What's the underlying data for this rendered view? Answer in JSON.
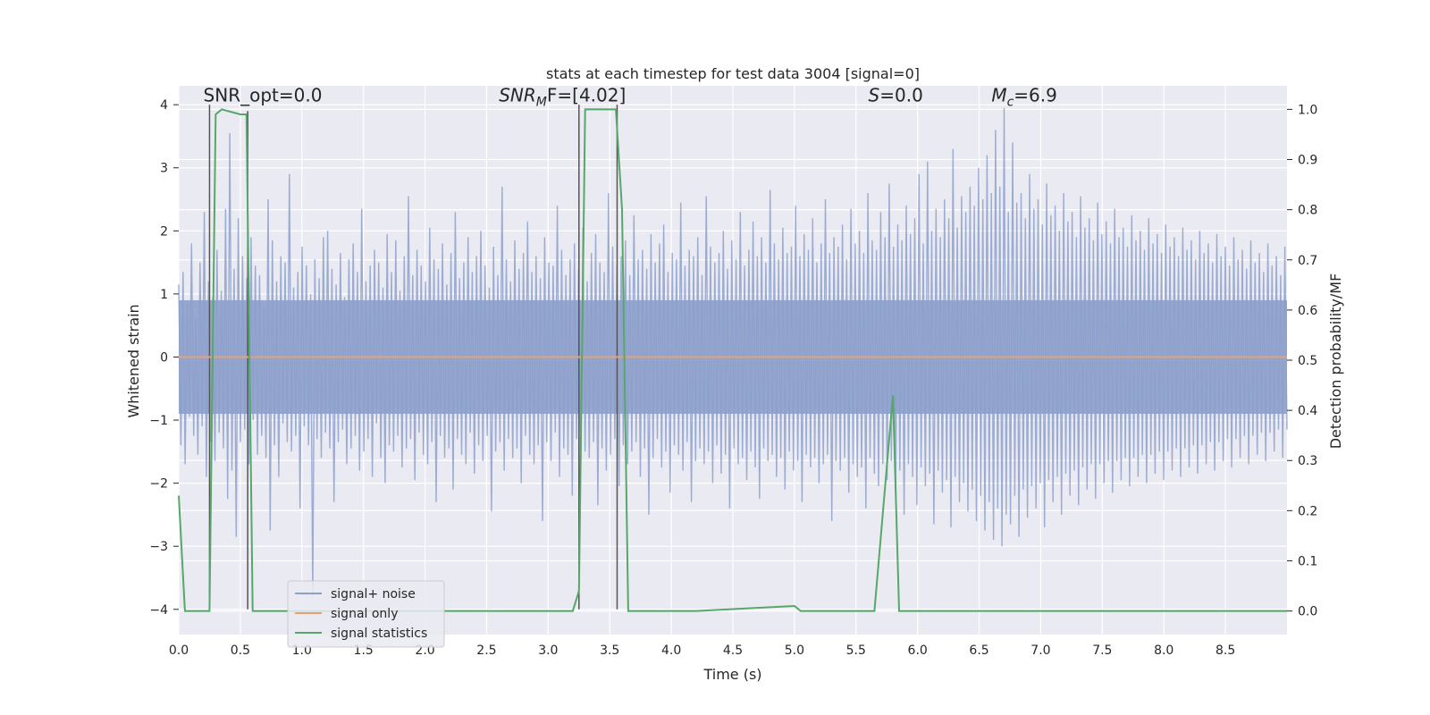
{
  "chart_data": {
    "type": "line",
    "title": "stats at each timestep for test data 3004 [signal=0]",
    "xlabel": "Time (s)",
    "ylabel": "Whitened strain",
    "y2label": "Detection probability/MF",
    "xlim": [
      0.0,
      9.0
    ],
    "ylim": [
      -4.4,
      4.3
    ],
    "y2lim": [
      -0.047,
      1.047
    ],
    "xticks": [
      0.0,
      0.5,
      1.0,
      1.5,
      2.0,
      2.5,
      3.0,
      3.5,
      4.0,
      4.5,
      5.0,
      5.5,
      6.0,
      6.5,
      7.0,
      7.5,
      8.0,
      8.5
    ],
    "xtick_labels": [
      "0.0",
      "0.5",
      "1.0",
      "1.5",
      "2.0",
      "2.5",
      "3.0",
      "3.5",
      "4.0",
      "4.5",
      "5.0",
      "5.5",
      "6.0",
      "6.5",
      "7.0",
      "7.5",
      "8.0",
      "8.5"
    ],
    "yticks": [
      -4,
      -3,
      -2,
      -1,
      0,
      1,
      2,
      3,
      4
    ],
    "ytick_labels": [
      "−4",
      "−3",
      "−2",
      "−1",
      "0",
      "1",
      "2",
      "3",
      "4"
    ],
    "y2ticks": [
      0.0,
      0.1,
      0.2,
      0.3,
      0.4,
      0.5,
      0.6,
      0.7,
      0.8,
      0.9,
      1.0
    ],
    "y2tick_labels": [
      "0.0",
      "0.1",
      "0.2",
      "0.3",
      "0.4",
      "0.5",
      "0.6",
      "0.7",
      "0.8",
      "0.9",
      "1.0"
    ],
    "grid": true,
    "legend_position": "lower-left",
    "series": [
      {
        "name": "signal+ noise",
        "axis": "left",
        "color": "#8da0cb",
        "description": "dense whitened strain noise trace, sampled every 0.01 s",
        "values": [
          1.15,
          -1.4,
          1.35,
          -1.7,
          0.85,
          -0.95,
          1.8,
          -1.25,
          0.6,
          -1.55,
          1.5,
          -1.1,
          2.3,
          -1.9,
          1.2,
          -1.35,
          0.95,
          -1.65,
          1.7,
          -1.2,
          1.05,
          -1.45,
          2.35,
          -2.25,
          3.55,
          -1.8,
          1.4,
          -2.85,
          2.2,
          -1.35,
          1.6,
          -1.15,
          1.25,
          -1.7,
          1.9,
          -1.0,
          1.45,
          -1.55,
          1.3,
          -1.25,
          0.8,
          -1.6,
          2.5,
          -2.75,
          1.85,
          -1.4,
          1.2,
          -1.9,
          1.6,
          -1.05,
          1.5,
          -1.35,
          2.9,
          -1.5,
          1.1,
          -1.25,
          1.35,
          -2.4,
          1.75,
          -1.1,
          1.45,
          -1.4,
          1.0,
          -3.8,
          1.55,
          -1.3,
          1.25,
          -1.6,
          1.9,
          -1.2,
          2.0,
          -1.45,
          1.4,
          -2.3,
          1.15,
          -1.35,
          1.65,
          -1.15,
          0.95,
          -1.7,
          1.55,
          -1.45,
          1.8,
          -1.25,
          1.35,
          -1.8,
          2.35,
          -1.5,
          1.2,
          -1.3,
          1.45,
          -1.9,
          1.7,
          -1.05,
          1.5,
          -1.6,
          1.1,
          -2.0,
          1.95,
          -1.4,
          1.35,
          -1.5,
          1.85,
          -1.25,
          1.05,
          -1.75,
          1.6,
          -1.45,
          2.55,
          -1.3,
          1.3,
          -1.95,
          1.7,
          -1.2,
          1.45,
          -1.55,
          1.2,
          -1.7,
          2.05,
          -1.35,
          1.55,
          -2.3,
          1.4,
          -1.25,
          1.8,
          -1.6,
          1.15,
          -1.45,
          1.65,
          -2.1,
          2.3,
          -1.3,
          1.25,
          -1.55,
          1.5,
          -1.7,
          1.9,
          -1.2,
          1.35,
          -1.85,
          1.6,
          -1.4,
          2.0,
          -1.65,
          1.45,
          -1.25,
          1.1,
          -2.45,
          1.75,
          -1.5,
          1.3,
          -1.35,
          2.7,
          -1.8,
          1.55,
          -1.3,
          1.2,
          -1.6,
          1.85,
          -1.45,
          1.4,
          -2.0,
          1.65,
          -1.25,
          2.15,
          -1.55,
          1.35,
          -1.7,
          1.6,
          -1.4,
          1.25,
          -2.6,
          1.9,
          -1.35,
          1.5,
          -1.65,
          1.45,
          -1.2,
          2.4,
          -1.9,
          1.7,
          -1.45,
          1.3,
          -1.55,
          1.55,
          -2.2,
          1.8,
          -1.3,
          1.4,
          -1.75,
          2.05,
          -1.5,
          1.2,
          -1.6,
          1.65,
          -1.35,
          1.95,
          -2.35,
          1.5,
          -1.45,
          1.35,
          -1.8,
          2.6,
          -1.55,
          1.75,
          -1.3,
          1.45,
          -2.05,
          1.6,
          -1.4,
          1.85,
          -1.7,
          1.3,
          -1.5,
          2.25,
          -1.35,
          1.55,
          -1.9,
          1.7,
          -1.45,
          1.4,
          -2.5,
          1.95,
          -1.6,
          1.5,
          -1.3,
          1.8,
          -1.75,
          2.1,
          -1.5,
          1.35,
          -2.15,
          1.65,
          -1.4,
          1.55,
          -1.55,
          2.45,
          -1.8,
          1.45,
          -1.35,
          1.7,
          -2.3,
          1.6,
          -1.65,
          1.9,
          -1.45,
          1.3,
          -1.7,
          2.55,
          -1.5,
          1.75,
          -2.0,
          1.5,
          -1.4,
          1.65,
          -1.85,
          2.0,
          -1.55,
          1.4,
          -2.4,
          1.85,
          -1.45,
          1.55,
          -1.7,
          2.3,
          -1.6,
          1.45,
          -1.95,
          1.7,
          -1.5,
          2.15,
          -1.75,
          1.6,
          -2.25,
          1.9,
          -1.45,
          1.5,
          -1.65,
          2.65,
          -1.55,
          1.8,
          -1.9,
          1.55,
          -1.6,
          2.05,
          -2.1,
          1.65,
          -1.5,
          1.75,
          -1.8,
          2.4,
          -1.65,
          1.6,
          -2.3,
          1.95,
          -1.55,
          1.7,
          -1.75,
          2.2,
          -1.6,
          1.5,
          -2.0,
          1.8,
          -1.7,
          2.5,
          -1.55,
          1.65,
          -2.6,
          1.9,
          -1.65,
          1.75,
          -1.8,
          2.1,
          -1.6,
          1.55,
          -2.15,
          2.35,
          -1.7,
          1.8,
          -1.9,
          2.0,
          -1.75,
          1.65,
          -2.4,
          2.6,
          -1.6,
          1.85,
          -1.85,
          1.7,
          -2.05,
          2.3,
          -1.7,
          1.9,
          -1.95,
          2.75,
          -1.65,
          1.75,
          -2.2,
          2.1,
          -1.8,
          1.85,
          -2.5,
          2.4,
          -1.7,
          1.95,
          -1.9,
          2.2,
          -2.35,
          2.9,
          -1.75,
          1.8,
          -2.05,
          3.1,
          -1.85,
          2.0,
          -2.65,
          2.35,
          -1.8,
          1.9,
          -2.15,
          2.5,
          -1.95,
          2.2,
          -2.7,
          3.3,
          -1.9,
          2.05,
          -2.3,
          2.55,
          -2.0,
          2.3,
          -2.45,
          2.7,
          -2.1,
          2.4,
          -2.6,
          3.0,
          -2.2,
          2.5,
          -2.75,
          3.2,
          -2.3,
          2.6,
          -2.9,
          3.6,
          -2.4,
          2.7,
          -3.0,
          3.95,
          -2.5,
          2.3,
          -2.65,
          3.4,
          -2.2,
          2.45,
          -2.85,
          2.6,
          -2.1,
          2.2,
          -2.55,
          2.9,
          -2.05,
          2.35,
          -2.4,
          2.5,
          -2.0,
          2.1,
          -2.7,
          2.75,
          -1.95,
          2.25,
          -2.3,
          2.4,
          -1.9,
          2.0,
          -2.5,
          2.6,
          -1.85,
          2.15,
          -2.2,
          2.3,
          -1.8,
          1.9,
          -2.35,
          2.55,
          -1.75,
          2.05,
          -2.1,
          2.2,
          -1.7,
          1.85,
          -2.25,
          2.45,
          -1.7,
          1.95,
          -2.0,
          2.15,
          -1.65,
          1.8,
          -2.15,
          2.35,
          -1.65,
          1.9,
          -1.95,
          2.05,
          -1.6,
          1.75,
          -2.05,
          2.25,
          -1.6,
          1.85,
          -1.9,
          2.0,
          -1.55,
          1.7,
          -2.0,
          2.2,
          -1.55,
          1.8,
          -1.85,
          1.95,
          -1.5,
          1.65,
          -1.95,
          2.1,
          -1.5,
          1.75,
          -1.8,
          1.9,
          -1.45,
          1.6,
          -1.9,
          2.05,
          -1.45,
          1.7,
          -1.75,
          1.85,
          -1.4,
          1.55,
          -1.85,
          2.0,
          -1.4,
          1.65,
          -1.7,
          1.8,
          -1.35,
          1.5,
          -1.8,
          1.95,
          -1.35,
          1.6,
          -1.65,
          1.75,
          -1.3,
          1.45,
          -1.75,
          1.9,
          -1.3,
          1.55,
          -1.6,
          1.7,
          -1.25,
          1.4,
          -1.7,
          1.85,
          -1.25,
          1.5,
          -1.55,
          1.65,
          -1.2,
          1.35,
          -1.65,
          1.8,
          -1.2,
          1.45,
          -1.5,
          1.6,
          -1.15,
          1.3,
          -1.6,
          1.75,
          -1.15
        ]
      },
      {
        "name": "signal only",
        "axis": "left",
        "color": "#e8a077",
        "x": [
          0.0,
          9.0
        ],
        "y": [
          0.0,
          0.0
        ]
      },
      {
        "name": "signal statistics",
        "axis": "right",
        "color": "#55a868",
        "x": [
          0.0,
          0.05,
          0.25,
          0.3,
          0.35,
          0.5,
          0.55,
          0.6,
          0.65,
          3.2,
          3.25,
          3.3,
          3.55,
          3.6,
          3.65,
          3.7,
          4.2,
          5.0,
          5.05,
          5.1,
          5.65,
          5.8,
          5.85,
          6.0,
          7.5,
          9.0
        ],
        "y": [
          0.23,
          0.0,
          0.0,
          0.99,
          1.0,
          0.99,
          0.99,
          0.0,
          0.0,
          0.0,
          0.04,
          1.0,
          1.0,
          0.8,
          0.0,
          0.0,
          0.0,
          0.01,
          0.0,
          0.0,
          0.0,
          0.43,
          0.0,
          0.0,
          0.0,
          0.0
        ]
      }
    ],
    "vertical_markers": [
      {
        "x": 0.25,
        "y_from": -4.0,
        "y_to": 4.0,
        "color": "#555555"
      },
      {
        "x": 0.56,
        "y_from": -4.0,
        "y_to": 3.9,
        "color": "#555555"
      },
      {
        "x": 3.25,
        "y_from": -4.0,
        "y_to": 4.0,
        "color": "#555555"
      },
      {
        "x": 3.56,
        "y_from": -4.0,
        "y_to": 4.0,
        "color": "#555555"
      }
    ],
    "annotations": [
      {
        "text": "SNR_opt=0.0",
        "x": 0.2,
        "y": 4.05
      },
      {
        "text_main": "SNR",
        "text_sub": "M",
        "text_tail": "F=[4.02]",
        "x": 2.6,
        "y": 4.05
      },
      {
        "text_main": "S",
        "text_tail": "=0.0",
        "x": 5.6,
        "y": 4.05
      },
      {
        "text_main": "M",
        "text_sub": "c",
        "text_tail": "=6.9",
        "x": 6.6,
        "y": 4.05
      }
    ],
    "legend": [
      "signal+ noise",
      "signal only",
      "signal statistics"
    ]
  }
}
